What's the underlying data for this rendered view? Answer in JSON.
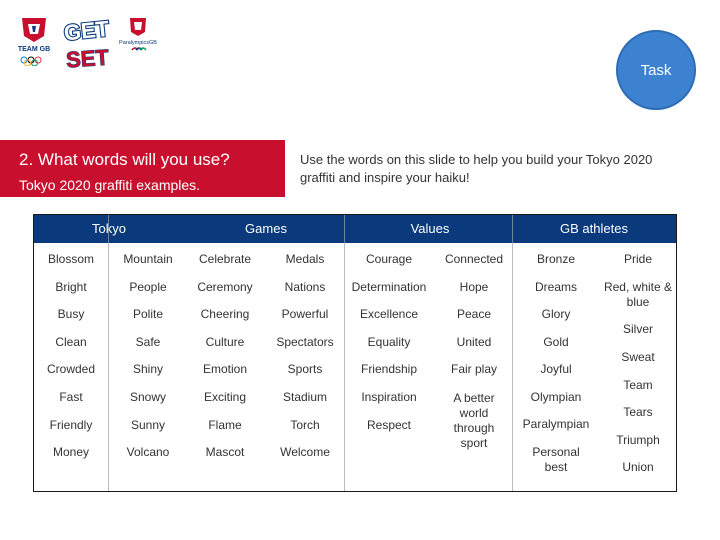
{
  "logos": {
    "team_gb": "TEAM GB",
    "get_set": "GET SET",
    "paralympics_gb": "ParalympicsGB"
  },
  "task_button": {
    "label": "Task"
  },
  "title": {
    "heading": "2. What words will you use?",
    "subheading": "Tokyo 2020 graffiti examples."
  },
  "instructions": "Use the words on this slide to help you build your Tokyo 2020 graffiti and inspire your haiku!",
  "table": {
    "headers": [
      "Tokyo",
      "Games",
      "Values",
      "GB athletes"
    ],
    "columns": [
      [
        "Blossom",
        "Bright",
        "Busy",
        "Clean",
        "Crowded",
        "Fast",
        "Friendly",
        "Money"
      ],
      [
        "Mountain",
        "People",
        "Polite",
        "Safe",
        "Shiny",
        "Snowy",
        "Sunny",
        "Volcano"
      ],
      [
        "Celebrate",
        "Ceremony",
        "Cheering",
        "Culture",
        "Emotion",
        "Exciting",
        "Flame",
        "Mascot"
      ],
      [
        "Medals",
        "Nations",
        "Powerful",
        "Spectators",
        "Sports",
        "Stadium",
        "Torch",
        "Welcome"
      ],
      [
        "Courage",
        "Determination",
        "Excellence",
        "Equality",
        "Friendship",
        "Inspiration",
        "Respect"
      ],
      [
        "Connected",
        "Hope",
        "Peace",
        "United",
        "Fair play",
        "A better world through sport"
      ],
      [
        "Bronze",
        "Dreams",
        "Glory",
        "Gold",
        "Joyful",
        "Olympian",
        "Paralympian",
        "Personal best"
      ],
      [
        "Pride",
        "Red, white & blue",
        "Silver",
        "Sweat",
        "Team",
        "Tears",
        "Triumph",
        "Union"
      ]
    ]
  },
  "colors": {
    "accent_red": "#c8102e",
    "header_navy": "#0a3a7c",
    "task_blue": "#3d82d0"
  }
}
